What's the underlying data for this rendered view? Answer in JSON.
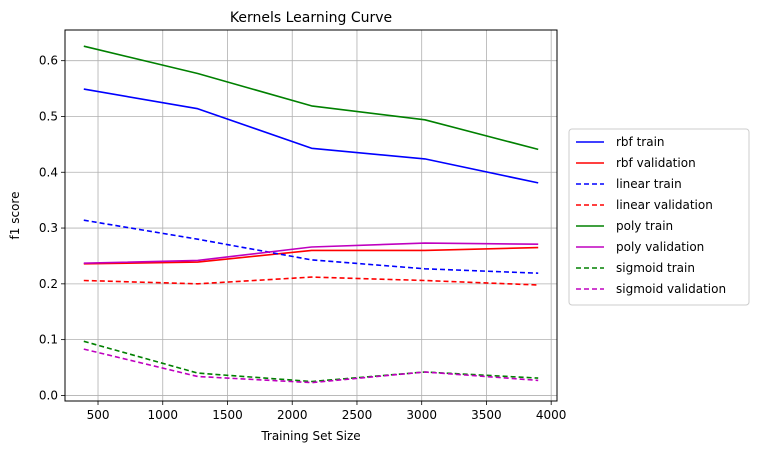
{
  "chart_data": {
    "type": "line",
    "title": "Kernels Learning Curve",
    "xlabel": "Training Set Size",
    "ylabel": "f1 score",
    "xlim": [
      245,
      4045
    ],
    "ylim": [
      -0.01,
      0.655
    ],
    "xticks": [
      500,
      1000,
      1500,
      2000,
      2500,
      3000,
      3500,
      4000
    ],
    "xtick_labels": [
      "500",
      "1000",
      "1500",
      "2000",
      "2500",
      "3000",
      "3500",
      "4000"
    ],
    "yticks": [
      0.0,
      0.1,
      0.2,
      0.3,
      0.4,
      0.5,
      0.6
    ],
    "ytick_labels": [
      "0.0",
      "0.1",
      "0.2",
      "0.3",
      "0.4",
      "0.5",
      "0.6"
    ],
    "grid": true,
    "legend_position": "outside-right",
    "x": [
      390,
      1270,
      2150,
      3025,
      3900
    ],
    "series": [
      {
        "name": "rbf train",
        "color": "#0000ff",
        "dash": "solid",
        "values": [
          0.549,
          0.514,
          0.443,
          0.424,
          0.381
        ]
      },
      {
        "name": "rbf validation",
        "color": "#ff0000",
        "dash": "solid",
        "values": [
          0.236,
          0.239,
          0.26,
          0.26,
          0.265
        ]
      },
      {
        "name": "linear train",
        "color": "#0000ff",
        "dash": "dashed",
        "values": [
          0.314,
          0.28,
          0.243,
          0.227,
          0.219
        ]
      },
      {
        "name": "linear validation",
        "color": "#ff0000",
        "dash": "dashed",
        "values": [
          0.206,
          0.2,
          0.212,
          0.206,
          0.198
        ]
      },
      {
        "name": "poly train",
        "color": "#008000",
        "dash": "solid",
        "values": [
          0.626,
          0.577,
          0.519,
          0.494,
          0.441
        ]
      },
      {
        "name": "poly validation",
        "color": "#bf00bf",
        "dash": "solid",
        "values": [
          0.237,
          0.242,
          0.266,
          0.273,
          0.271
        ]
      },
      {
        "name": "sigmoid train",
        "color": "#008000",
        "dash": "dashed",
        "values": [
          0.097,
          0.04,
          0.025,
          0.042,
          0.031
        ]
      },
      {
        "name": "sigmoid validation",
        "color": "#bf00bf",
        "dash": "dashed",
        "values": [
          0.083,
          0.034,
          0.023,
          0.042,
          0.027
        ]
      }
    ]
  }
}
